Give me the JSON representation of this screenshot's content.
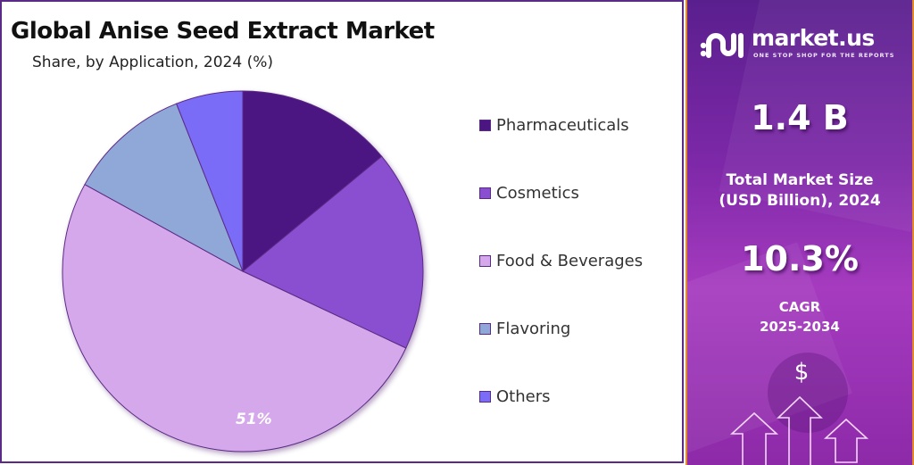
{
  "header": {
    "title": "Global Anise Seed Extract Market",
    "subtitle": "Share, by Application, 2024 (%)"
  },
  "chart_data": {
    "type": "pie",
    "title": "Global Anise Seed Extract Market",
    "subtitle": "Share, by Application, 2024 (%)",
    "categories": [
      "Pharmaceuticals",
      "Cosmetics",
      "Food & Beverages",
      "Flavoring",
      "Others"
    ],
    "values": [
      14,
      18,
      51,
      11,
      6
    ],
    "colors": [
      "#4b1582",
      "#8a4fd0",
      "#d4a8ea",
      "#8fa8d8",
      "#7a6cf7"
    ],
    "data_labels": [
      {
        "category": "Food & Beverages",
        "label": "51%"
      }
    ],
    "legend_position": "right",
    "start_angle": "top, clockwise"
  },
  "pie": {
    "label_food": "51%"
  },
  "legend": {
    "items": [
      {
        "label": "Pharmaceuticals",
        "color": "#4b1582"
      },
      {
        "label": "Cosmetics",
        "color": "#8a4fd0"
      },
      {
        "label": "Food & Beverages",
        "color": "#d4a8ea"
      },
      {
        "label": "Flavoring",
        "color": "#8fa8d8"
      },
      {
        "label": "Others",
        "color": "#7a6cf7"
      }
    ]
  },
  "sidebar": {
    "brand": "market.us",
    "tagline": "ONE STOP SHOP FOR THE REPORTS",
    "market_size_value": "1.4 B",
    "market_size_label_1": "Total Market Size",
    "market_size_label_2": "(USD Billion), 2024",
    "cagr_value": "10.3%",
    "cagr_label_1": "CAGR",
    "cagr_label_2": "2025-2034",
    "currency_symbol": "$"
  }
}
